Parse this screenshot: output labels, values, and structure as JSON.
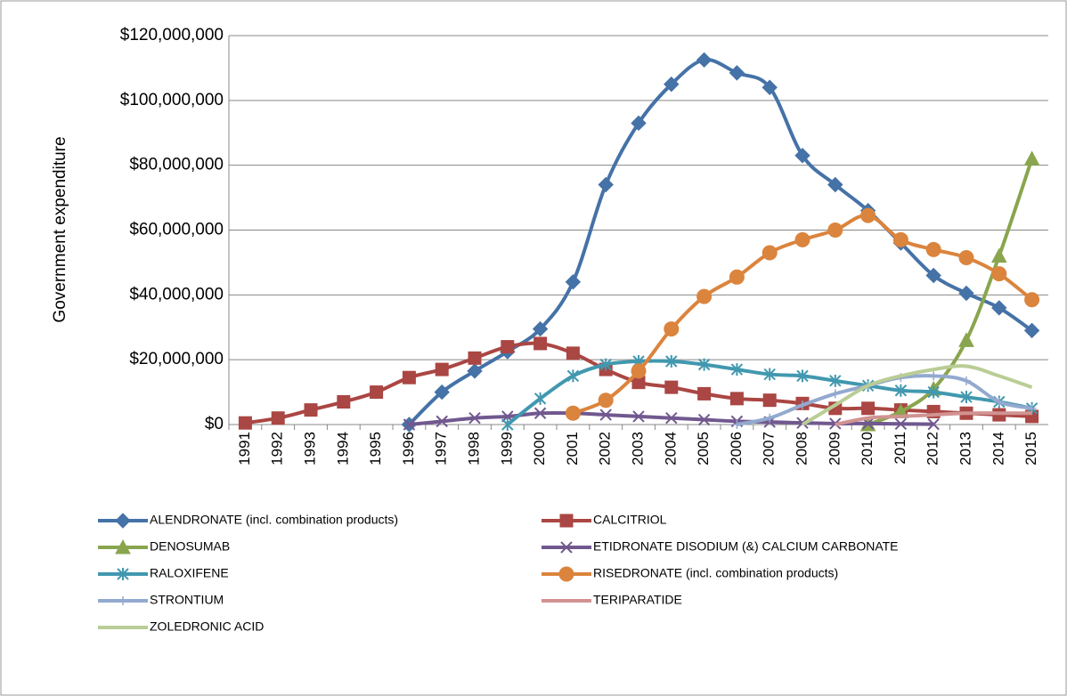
{
  "chart_data": {
    "type": "line",
    "y_label": "Government expenditure",
    "categories": [
      "1991",
      "1992",
      "1993",
      "1994",
      "1995",
      "1996",
      "1997",
      "1998",
      "1999",
      "2000",
      "2001",
      "2002",
      "2003",
      "2004",
      "2005",
      "2006",
      "2007",
      "2008",
      "2009",
      "2010",
      "2011",
      "2012",
      "2013",
      "2014",
      "2015"
    ],
    "ylim": [
      0,
      120000000
    ],
    "yticks": [
      {
        "value": 0,
        "label": "$0"
      },
      {
        "value": 20000000,
        "label": "$20,000,000"
      },
      {
        "value": 40000000,
        "label": "$40,000,000"
      },
      {
        "value": 60000000,
        "label": "$60,000,000"
      },
      {
        "value": 80000000,
        "label": "$80,000,000"
      },
      {
        "value": 100000000,
        "label": "$100,000,000"
      },
      {
        "value": 120000000,
        "label": "$120,000,000"
      }
    ],
    "grid": true,
    "legend": "bottom",
    "series": [
      {
        "name": "ALENDRONATE (incl. combination products)",
        "color": "#4572a7",
        "marker": "diamond",
        "values": [
          null,
          null,
          null,
          null,
          null,
          0,
          10000000,
          16500000,
          22500000,
          29500000,
          44000000,
          74000000,
          93000000,
          105000000,
          112500000,
          108500000,
          104000000,
          83000000,
          74000000,
          66000000,
          56000000,
          46000000,
          40500000,
          36000000,
          29000000
        ]
      },
      {
        "name": "CALCITRIOL",
        "color": "#aa4643",
        "marker": "square",
        "values": [
          500000,
          2000000,
          4500000,
          7000000,
          10000000,
          14500000,
          17000000,
          20500000,
          24000000,
          25000000,
          22000000,
          17000000,
          13000000,
          11500000,
          9500000,
          8000000,
          7500000,
          6500000,
          5000000,
          5000000,
          4500000,
          4000000,
          3500000,
          3000000,
          2500000
        ]
      },
      {
        "name": "DENOSUMAB",
        "color": "#89a54e",
        "marker": "triangle",
        "values": [
          null,
          null,
          null,
          null,
          null,
          null,
          null,
          null,
          null,
          null,
          null,
          null,
          null,
          null,
          null,
          null,
          null,
          null,
          null,
          0,
          4000000,
          11000000,
          26000000,
          52000000,
          82000000
        ]
      },
      {
        "name": "ETIDRONATE DISODIUM (&) CALCIUM CARBONATE",
        "color": "#71588f",
        "marker": "x",
        "values": [
          null,
          null,
          null,
          null,
          null,
          0,
          1000000,
          2000000,
          2500000,
          3500000,
          3500000,
          3000000,
          2500000,
          2000000,
          1500000,
          1000000,
          800000,
          500000,
          300000,
          300000,
          200000,
          100000,
          null,
          null,
          null
        ]
      },
      {
        "name": "RALOXIFENE",
        "color": "#4198af",
        "marker": "star",
        "values": [
          null,
          null,
          null,
          null,
          null,
          null,
          null,
          null,
          0,
          8000000,
          15000000,
          18500000,
          19500000,
          19500000,
          18500000,
          17000000,
          15500000,
          15000000,
          13500000,
          12000000,
          10500000,
          10000000,
          8500000,
          7000000,
          5000000
        ]
      },
      {
        "name": "RISEDRONATE (incl. combination products)",
        "color": "#db843d",
        "marker": "circle",
        "values": [
          null,
          null,
          null,
          null,
          null,
          null,
          null,
          null,
          null,
          null,
          3500000,
          7500000,
          16500000,
          29500000,
          39500000,
          45500000,
          53000000,
          57000000,
          60000000,
          64500000,
          57000000,
          54000000,
          51500000,
          46500000,
          38500000
        ]
      },
      {
        "name": "STRONTIUM",
        "color": "#93a9cf",
        "marker": "plus",
        "values": [
          null,
          null,
          null,
          null,
          null,
          null,
          null,
          null,
          null,
          null,
          null,
          null,
          null,
          null,
          null,
          0,
          2000000,
          6000000,
          9500000,
          12000000,
          14500000,
          15000000,
          13500000,
          7000000,
          5000000
        ]
      },
      {
        "name": "TERIPARATIDE",
        "color": "#d19392",
        "marker": "none",
        "values": [
          null,
          null,
          null,
          null,
          null,
          null,
          null,
          null,
          null,
          null,
          null,
          null,
          null,
          null,
          null,
          null,
          null,
          null,
          0,
          2000000,
          2500000,
          3000000,
          3500000,
          3500000,
          3500000
        ]
      },
      {
        "name": "ZOLEDRONIC ACID",
        "color": "#b9cd96",
        "marker": "none",
        "values": [
          null,
          null,
          null,
          null,
          null,
          null,
          null,
          null,
          null,
          null,
          null,
          null,
          null,
          null,
          null,
          null,
          null,
          0,
          6000000,
          12000000,
          15000000,
          17000000,
          18000000,
          15000000,
          11500000
        ]
      }
    ]
  }
}
